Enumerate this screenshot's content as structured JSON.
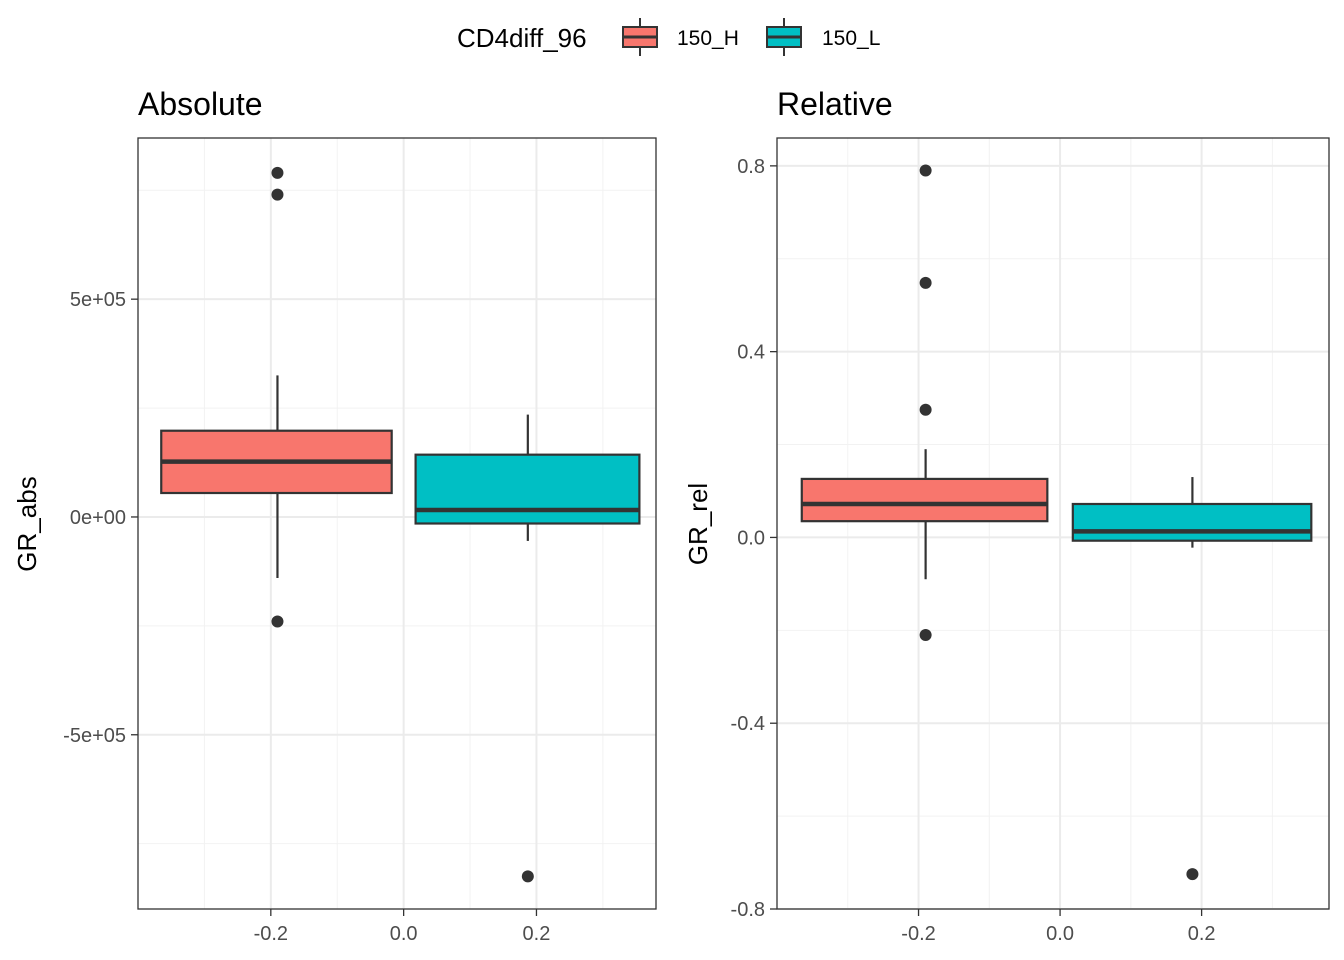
{
  "legend": {
    "title": "CD4diff_96",
    "position": "top",
    "items": [
      {
        "label": "150_H",
        "color": "#F8766D"
      },
      {
        "label": "150_L",
        "color": "#00BFC4"
      }
    ]
  },
  "chart_data": [
    {
      "type": "boxplot",
      "title": "Absolute",
      "xlabel": "",
      "ylabel": "GR_abs",
      "xlim": [
        -0.4,
        0.38
      ],
      "ylim": [
        -900000,
        870000
      ],
      "grid": true,
      "x_ticks": [
        {
          "value": -0.2,
          "label": "-0.2"
        },
        {
          "value": 0.0,
          "label": "0.0"
        },
        {
          "value": 0.2,
          "label": "0.2"
        }
      ],
      "y_ticks": [
        {
          "value": 500000,
          "label": "5e+05"
        },
        {
          "value": 0,
          "label": "0e+00"
        },
        {
          "value": -500000,
          "label": "-5e+05"
        }
      ],
      "boxes": [
        {
          "series": "150_H",
          "color": "#F8766D",
          "xmin": -0.365,
          "xmax": -0.018,
          "x": -0.19,
          "lower_whisker": -140000,
          "q1": 55000,
          "median": 127000,
          "q3": 198000,
          "upper_whisker": 325000,
          "outliers": [
            790000,
            740000,
            -240000
          ]
        },
        {
          "series": "150_L",
          "color": "#00BFC4",
          "xmin": 0.018,
          "xmax": 0.355,
          "x": 0.187,
          "lower_whisker": -55000,
          "q1": -15000,
          "median": 16000,
          "q3": 143000,
          "upper_whisker": 235000,
          "outliers": [
            -825000
          ]
        }
      ]
    },
    {
      "type": "boxplot",
      "title": "Relative",
      "xlabel": "",
      "ylabel": "GR_rel",
      "xlim": [
        -0.4,
        0.38
      ],
      "ylim": [
        -0.8,
        0.86
      ],
      "grid": true,
      "x_ticks": [
        {
          "value": -0.2,
          "label": "-0.2"
        },
        {
          "value": 0.0,
          "label": "0.0"
        },
        {
          "value": 0.2,
          "label": "0.2"
        }
      ],
      "y_ticks": [
        {
          "value": 0.8,
          "label": "0.8"
        },
        {
          "value": 0.4,
          "label": "0.4"
        },
        {
          "value": 0.0,
          "label": "0.0"
        },
        {
          "value": -0.4,
          "label": "-0.4"
        },
        {
          "value": -0.8,
          "label": "-0.8"
        }
      ],
      "boxes": [
        {
          "series": "150_H",
          "color": "#F8766D",
          "xmin": -0.365,
          "xmax": -0.018,
          "x": -0.19,
          "lower_whisker": -0.09,
          "q1": 0.035,
          "median": 0.072,
          "q3": 0.126,
          "upper_whisker": 0.19,
          "outliers": [
            0.79,
            0.548,
            0.275,
            -0.21
          ]
        },
        {
          "series": "150_L",
          "color": "#00BFC4",
          "xmin": 0.018,
          "xmax": 0.355,
          "x": 0.187,
          "lower_whisker": -0.022,
          "q1": -0.007,
          "median": 0.013,
          "q3": 0.072,
          "upper_whisker": 0.13,
          "outliers": [
            -0.725
          ]
        }
      ]
    }
  ]
}
